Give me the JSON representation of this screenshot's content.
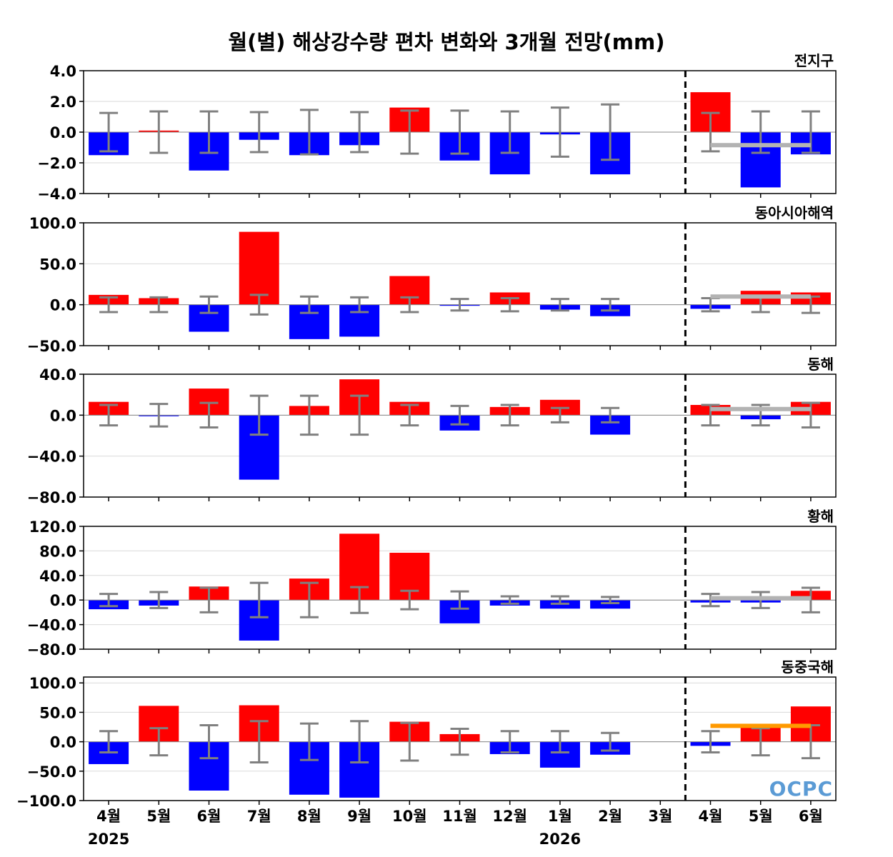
{
  "chart_data": {
    "type": "bar",
    "title": "월(별) 해상강수량 편차 변화와 3개월 전망(mm)",
    "categories": [
      "4월",
      "5월",
      "6월",
      "7월",
      "8월",
      "9월",
      "10월",
      "11월",
      "12월",
      "1월",
      "2월",
      "3월",
      "4월",
      "5월",
      "6월"
    ],
    "year_labels": [
      {
        "category_index": 0,
        "label": "2025"
      },
      {
        "category_index": 9,
        "label": "2026"
      }
    ],
    "forecast_divider_after_category": "3월",
    "colors": {
      "positive": "#ff0000",
      "negative": "#0000ff",
      "error_bar": "#808080",
      "forecast_line": "#b3b3b3",
      "forecast_line_highlight": "#ff9900",
      "logo": "#5b9bd5"
    },
    "logo_text": "OCPC",
    "panels": [
      {
        "label": "전지구",
        "ylim": [
          -4,
          4
        ],
        "yticks": [
          "4.0",
          "2.0",
          "0.0",
          "−2.0",
          "−4.0"
        ],
        "ytick_values": [
          4,
          2,
          0,
          -2,
          -4
        ],
        "values": [
          -1.5,
          0.1,
          -2.5,
          -0.5,
          -1.5,
          -0.85,
          1.6,
          -1.85,
          -2.75,
          -0.15,
          -2.75,
          0,
          2.6,
          -3.6,
          -1.45
        ],
        "error": [
          1.25,
          1.35,
          1.35,
          1.3,
          1.45,
          1.3,
          1.4,
          1.4,
          1.35,
          1.6,
          1.8,
          0,
          1.25,
          1.35,
          1.35
        ],
        "forecast_line": {
          "value": -0.85,
          "from_index": 12,
          "to_index": 14,
          "color": "#b3b3b3"
        }
      },
      {
        "label": "동아시아해역",
        "ylim": [
          -50,
          100
        ],
        "yticks": [
          "100.0",
          "50.0",
          "0.0",
          "−50.0"
        ],
        "ytick_values": [
          100,
          50,
          0,
          -50
        ],
        "values": [
          12,
          8,
          -33,
          89,
          -42,
          -39,
          35,
          -1,
          15,
          -6,
          -14,
          0,
          -5,
          17,
          15
        ],
        "error": [
          9,
          9,
          10,
          12,
          10,
          9,
          9,
          7,
          8,
          7,
          7,
          0,
          8,
          9,
          10
        ],
        "forecast_line": {
          "value": 10,
          "from_index": 12,
          "to_index": 14,
          "color": "#b3b3b3"
        }
      },
      {
        "label": "동해",
        "ylim": [
          -80,
          40
        ],
        "yticks": [
          "40.0",
          "0.0",
          "−40.0",
          "−80.0"
        ],
        "ytick_values": [
          40,
          0,
          -40,
          -80
        ],
        "values": [
          13,
          -1,
          26,
          -63,
          9,
          35,
          13,
          -15,
          8,
          15,
          -19,
          0,
          10,
          -4,
          13
        ],
        "error": [
          10,
          11,
          12,
          19,
          19,
          19,
          10,
          9,
          10,
          7,
          7,
          0,
          10,
          10,
          12
        ],
        "forecast_line": {
          "value": 6,
          "from_index": 12,
          "to_index": 14,
          "color": "#b3b3b3"
        }
      },
      {
        "label": "황해",
        "ylim": [
          -80,
          120
        ],
        "yticks": [
          "120.0",
          "80.0",
          "40.0",
          "0.0",
          "−40.0",
          "−80.0"
        ],
        "ytick_values": [
          120,
          80,
          40,
          0,
          -40,
          -80
        ],
        "values": [
          -15,
          -9,
          22,
          -66,
          35,
          108,
          77,
          -38,
          -9,
          -14,
          -14,
          0,
          -4,
          -4,
          15
        ],
        "error": [
          10,
          13,
          20,
          28,
          28,
          21,
          15,
          14,
          6,
          6,
          5,
          0,
          10,
          13,
          20
        ],
        "forecast_line": {
          "value": 3,
          "from_index": 12,
          "to_index": 14,
          "color": "#b3b3b3"
        }
      },
      {
        "label": "동중국해",
        "ylim": [
          -100,
          110
        ],
        "yticks": [
          "100.0",
          "50.0",
          "0.0",
          "−50.0",
          "−100.0"
        ],
        "ytick_values": [
          100,
          50,
          0,
          -50,
          -100
        ],
        "values": [
          -38,
          61,
          -83,
          62,
          -90,
          -95,
          34,
          13,
          -21,
          -44,
          -22,
          0,
          -7,
          27,
          60
        ],
        "error": [
          18,
          23,
          28,
          35,
          31,
          35,
          32,
          22,
          18,
          18,
          15,
          0,
          18,
          23,
          28
        ],
        "forecast_line": {
          "value": 27,
          "from_index": 12,
          "to_index": 14,
          "color": "#ff9900"
        }
      }
    ]
  }
}
